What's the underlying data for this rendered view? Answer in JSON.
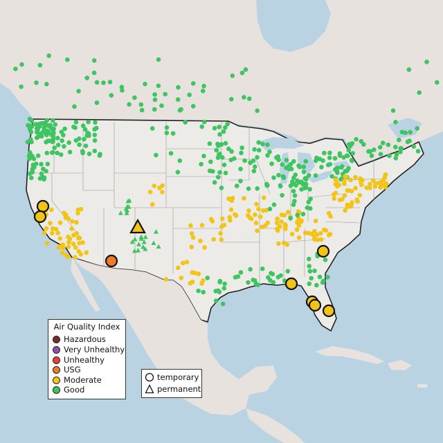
{
  "legend": {
    "title": "Air Quality Index",
    "items": [
      {
        "label": "Hazardous",
        "color": "#7e2b1f"
      },
      {
        "label": "Very Unhealthy",
        "color": "#8e4fa6"
      },
      {
        "label": "Unhealthy",
        "color": "#e8413a"
      },
      {
        "label": "USG",
        "color": "#ee7b28"
      },
      {
        "label": "Moderate",
        "color": "#f2c418"
      },
      {
        "label": "Good",
        "color": "#3fc462"
      }
    ]
  },
  "monitor_types": {
    "temporary": "temporary",
    "permanent": "permanent"
  },
  "highlighted_monitors": [
    {
      "type": "temporary",
      "category": "Moderate",
      "region": "Northern California"
    },
    {
      "type": "temporary",
      "category": "Moderate",
      "region": "Northern California"
    },
    {
      "type": "permanent",
      "category": "Moderate",
      "region": "Four Corners"
    },
    {
      "type": "temporary",
      "category": "USG",
      "region": "Southern Arizona"
    },
    {
      "type": "temporary",
      "category": "Moderate",
      "region": "South Carolina"
    },
    {
      "type": "temporary",
      "category": "Moderate",
      "region": "Florida Panhandle"
    },
    {
      "type": "temporary",
      "category": "Moderate",
      "region": "Central Florida"
    },
    {
      "type": "temporary",
      "category": "Moderate",
      "region": "Central Florida"
    },
    {
      "type": "temporary",
      "category": "Moderate",
      "region": "South Florida"
    }
  ]
}
